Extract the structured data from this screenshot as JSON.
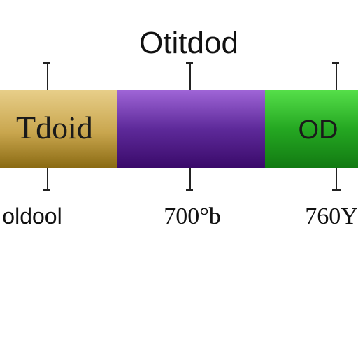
{
  "title": "Otitdod",
  "segment_labels": [
    "Tdoid",
    "OD"
  ],
  "tick_labels": [
    "oldool",
    "700°b",
    "760Y"
  ]
}
